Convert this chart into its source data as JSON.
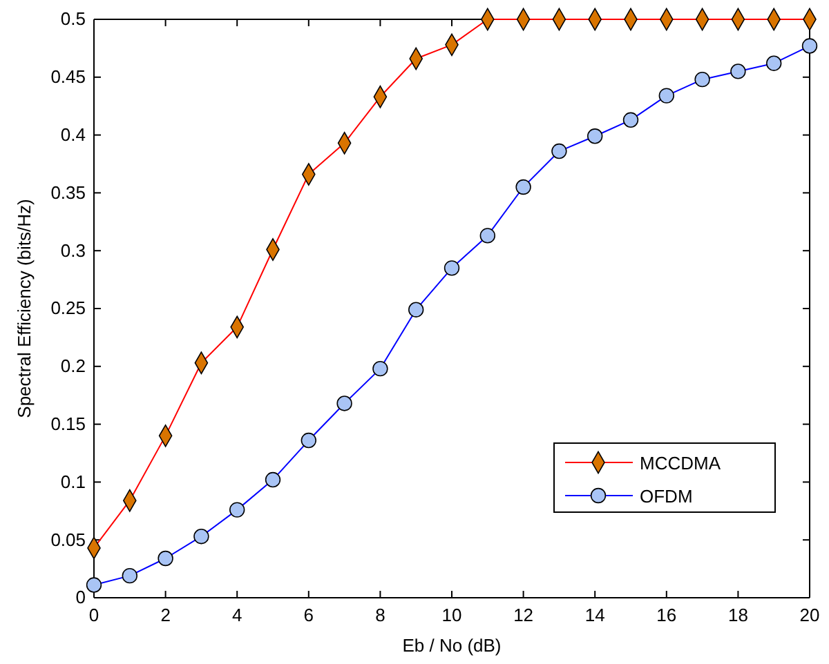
{
  "chart_data": {
    "type": "line",
    "xlabel": "Eb / No (dB)",
    "ylabel": "Spectral Efficiency (bits/Hz)",
    "x": [
      0,
      1,
      2,
      3,
      4,
      5,
      6,
      7,
      8,
      9,
      10,
      11,
      12,
      13,
      14,
      15,
      16,
      17,
      18,
      19,
      20
    ],
    "xlim": [
      0,
      20
    ],
    "xticks": [
      0,
      2,
      4,
      6,
      8,
      10,
      12,
      14,
      16,
      18,
      20
    ],
    "ylim": [
      0,
      0.5
    ],
    "yticks": [
      0,
      0.05,
      0.1,
      0.15,
      0.2,
      0.25,
      0.3,
      0.35,
      0.4,
      0.45,
      0.5
    ],
    "grid": false,
    "legend": "bottom right",
    "line_style": "solid",
    "series": [
      {
        "name": "MCCDMA",
        "color": "#ff0000",
        "marker": "diamond",
        "values": [
          0.043,
          0.084,
          0.14,
          0.203,
          0.234,
          0.301,
          0.366,
          0.393,
          0.433,
          0.466,
          0.478,
          0.5,
          0.5,
          0.5,
          0.5,
          0.5,
          0.5,
          0.5,
          0.5,
          0.5,
          0.5
        ]
      },
      {
        "name": "OFDM",
        "color": "#0000ff",
        "marker": "circle",
        "values": [
          0.011,
          0.019,
          0.034,
          0.053,
          0.076,
          0.102,
          0.136,
          0.168,
          0.198,
          0.249,
          0.285,
          0.313,
          0.355,
          0.386,
          0.399,
          0.413,
          0.434,
          0.448,
          0.455,
          0.462,
          0.477
        ]
      }
    ]
  }
}
